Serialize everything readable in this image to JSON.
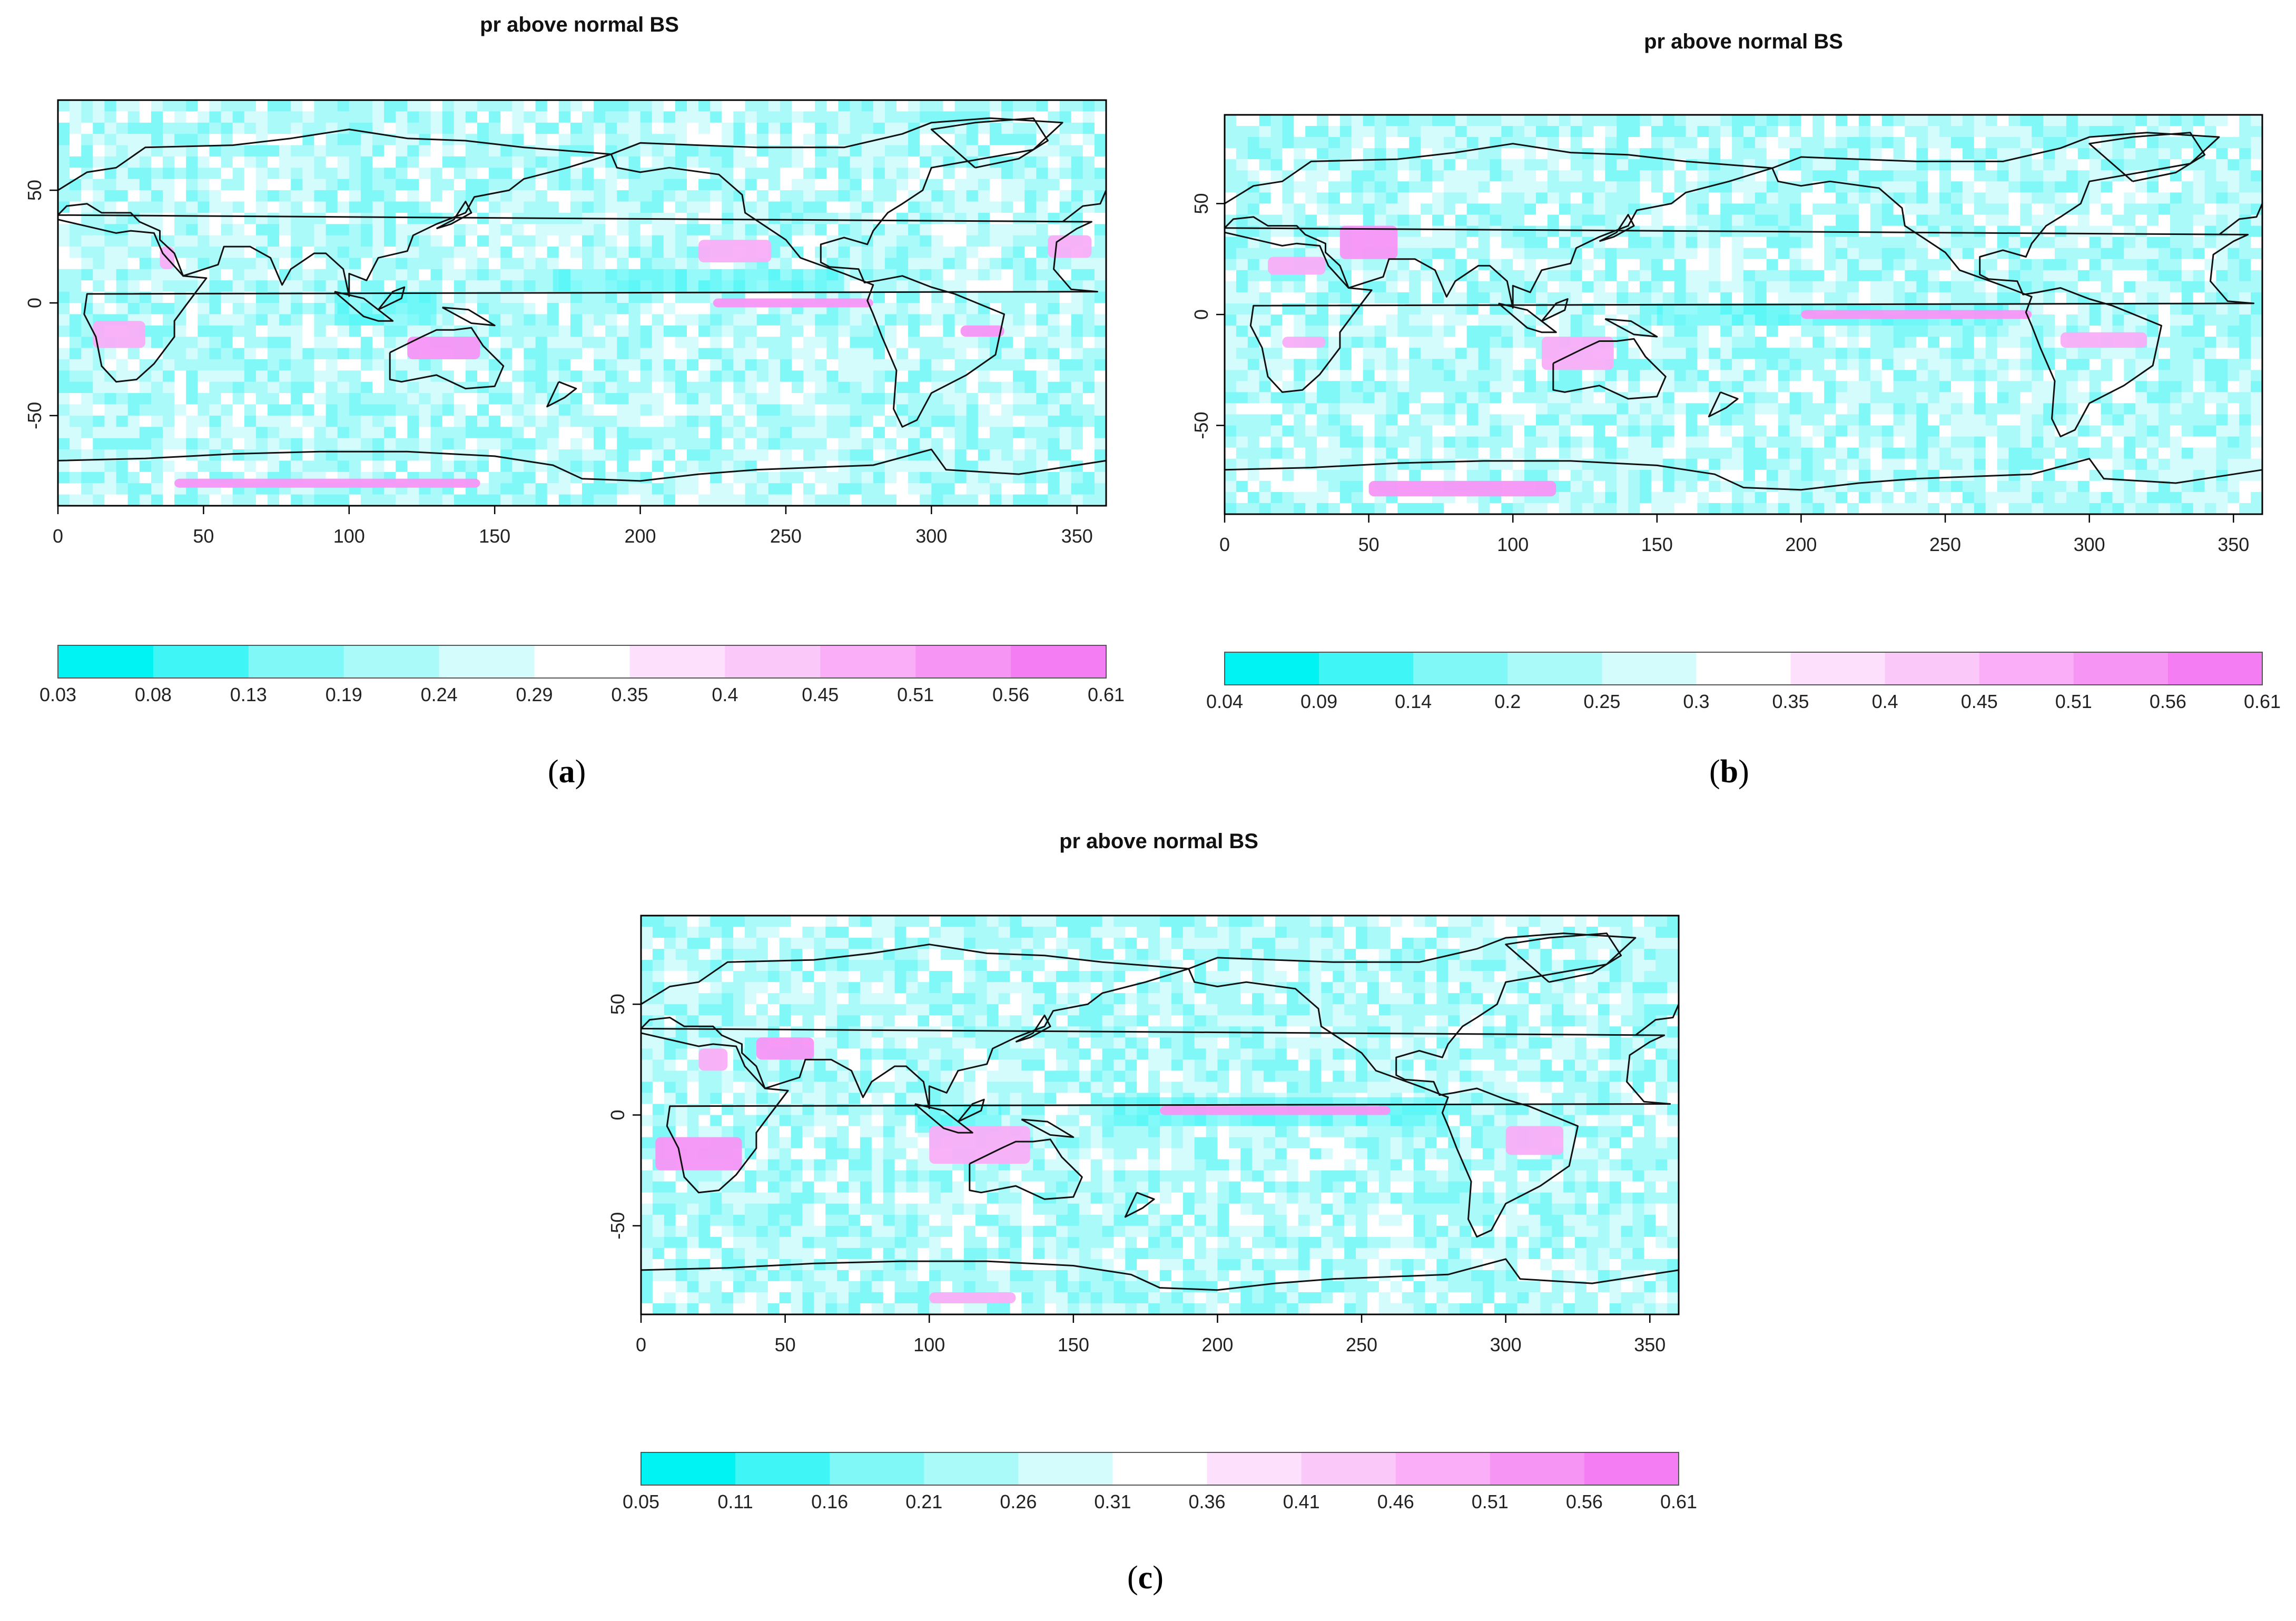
{
  "figure": {
    "captions": [
      "(a)",
      "(b)",
      "(c)"
    ],
    "letters": [
      "a",
      "b",
      "c"
    ]
  },
  "colors": {
    "frame": "#000000",
    "coast": "#111111",
    "ocean_base": "#c6f6f7",
    "land_base": "#dcfafb"
  },
  "chart_data": [
    {
      "type": "heatmap",
      "title": "pr above normal BS",
      "xlim": [
        0,
        360
      ],
      "ylim": [
        -90,
        90
      ],
      "x_ticks": [
        "0",
        "50",
        "100",
        "150",
        "200",
        "250",
        "300",
        "350"
      ],
      "x_tick_values": [
        0,
        50,
        100,
        150,
        200,
        250,
        300,
        350
      ],
      "y_ticks": [
        "50",
        "0",
        "-50"
      ],
      "y_tick_values": [
        50,
        0,
        -50
      ],
      "colorbar_labels": [
        "0.03",
        "0.08",
        "0.13",
        "0.19",
        "0.24",
        "0.29",
        "0.35",
        "0.4",
        "0.45",
        "0.51",
        "0.56",
        "0.61"
      ],
      "colorbar_colors": [
        "#00f3f3",
        "#3ff5f5",
        "#80f8f8",
        "#abfafa",
        "#d5fcfc",
        "#ffffff",
        "#fde0fc",
        "#fbc8fa",
        "#f9aef7",
        "#f795f5",
        "#f57df3"
      ],
      "high_regions": [
        {
          "lon": [
            220,
            245
          ],
          "lat": [
            18,
            28
          ]
        },
        {
          "lon": [
            225,
            280
          ],
          "lat": [
            -2,
            2
          ]
        },
        {
          "lon": [
            12,
            30
          ],
          "lat": [
            -20,
            -8
          ]
        },
        {
          "lon": [
            120,
            145
          ],
          "lat": [
            -25,
            -15
          ]
        },
        {
          "lon": [
            35,
            40
          ],
          "lat": [
            15,
            25
          ]
        },
        {
          "lon": [
            310,
            325
          ],
          "lat": [
            -15,
            -10
          ]
        },
        {
          "lon": [
            340,
            355
          ],
          "lat": [
            20,
            30
          ]
        },
        {
          "lon": [
            40,
            145
          ],
          "lat": [
            -82,
            -78
          ]
        }
      ],
      "low_regions": [
        {
          "lon": [
            170,
            270
          ],
          "lat": [
            5,
            15
          ]
        },
        {
          "lon": [
            95,
            130
          ],
          "lat": [
            -10,
            5
          ]
        }
      ]
    },
    {
      "type": "heatmap",
      "title": "pr above normal BS",
      "xlim": [
        0,
        360
      ],
      "ylim": [
        -90,
        90
      ],
      "x_ticks": [
        "0",
        "50",
        "100",
        "150",
        "200",
        "250",
        "300",
        "350"
      ],
      "x_tick_values": [
        0,
        50,
        100,
        150,
        200,
        250,
        300,
        350
      ],
      "y_ticks": [
        "50",
        "0",
        "-50"
      ],
      "y_tick_values": [
        50,
        0,
        -50
      ],
      "colorbar_labels": [
        "0.04",
        "0.09",
        "0.14",
        "0.2",
        "0.25",
        "0.3",
        "0.35",
        "0.4",
        "0.45",
        "0.51",
        "0.56",
        "0.61"
      ],
      "colorbar_colors": [
        "#00f3f3",
        "#3ff5f5",
        "#80f8f8",
        "#abfafa",
        "#d5fcfc",
        "#ffffff",
        "#fde0fc",
        "#fbc8fa",
        "#f9aef7",
        "#f795f5",
        "#f57df3"
      ],
      "high_regions": [
        {
          "lon": [
            15,
            35
          ],
          "lat": [
            18,
            26
          ]
        },
        {
          "lon": [
            40,
            60
          ],
          "lat": [
            25,
            40
          ]
        },
        {
          "lon": [
            110,
            135
          ],
          "lat": [
            -25,
            -10
          ]
        },
        {
          "lon": [
            200,
            280
          ],
          "lat": [
            -2,
            2
          ]
        },
        {
          "lon": [
            290,
            320
          ],
          "lat": [
            -15,
            -8
          ]
        },
        {
          "lon": [
            50,
            115
          ],
          "lat": [
            -82,
            -75
          ]
        },
        {
          "lon": [
            20,
            35
          ],
          "lat": [
            -15,
            -10
          ]
        }
      ],
      "low_regions": [
        {
          "lon": [
            150,
            270
          ],
          "lat": [
            -5,
            5
          ]
        }
      ]
    },
    {
      "type": "heatmap",
      "title": "pr above normal BS",
      "xlim": [
        0,
        360
      ],
      "ylim": [
        -90,
        90
      ],
      "x_ticks": [
        "0",
        "50",
        "100",
        "150",
        "200",
        "250",
        "300",
        "350"
      ],
      "x_tick_values": [
        0,
        50,
        100,
        150,
        200,
        250,
        300,
        350
      ],
      "y_ticks": [
        "50",
        "0",
        "-50"
      ],
      "y_tick_values": [
        50,
        0,
        -50
      ],
      "colorbar_labels": [
        "0.05",
        "0.11",
        "0.16",
        "0.21",
        "0.26",
        "0.31",
        "0.36",
        "0.41",
        "0.46",
        "0.51",
        "0.56",
        "0.61"
      ],
      "colorbar_colors": [
        "#00f3f3",
        "#3ff5f5",
        "#80f8f8",
        "#abfafa",
        "#d5fcfc",
        "#ffffff",
        "#fde0fc",
        "#fbc8fa",
        "#f9aef7",
        "#f795f5",
        "#f57df3"
      ],
      "high_regions": [
        {
          "lon": [
            20,
            30
          ],
          "lat": [
            20,
            30
          ]
        },
        {
          "lon": [
            40,
            60
          ],
          "lat": [
            25,
            35
          ]
        },
        {
          "lon": [
            100,
            135
          ],
          "lat": [
            -22,
            -5
          ]
        },
        {
          "lon": [
            180,
            260
          ],
          "lat": [
            0,
            4
          ]
        },
        {
          "lon": [
            300,
            320
          ],
          "lat": [
            -18,
            -5
          ]
        },
        {
          "lon": [
            5,
            35
          ],
          "lat": [
            -25,
            -10
          ]
        },
        {
          "lon": [
            100,
            130
          ],
          "lat": [
            -85,
            -80
          ]
        }
      ],
      "low_regions": [
        {
          "lon": [
            160,
            280
          ],
          "lat": [
            -5,
            8
          ]
        },
        {
          "lon": [
            95,
            125
          ],
          "lat": [
            -8,
            5
          ]
        }
      ]
    }
  ]
}
